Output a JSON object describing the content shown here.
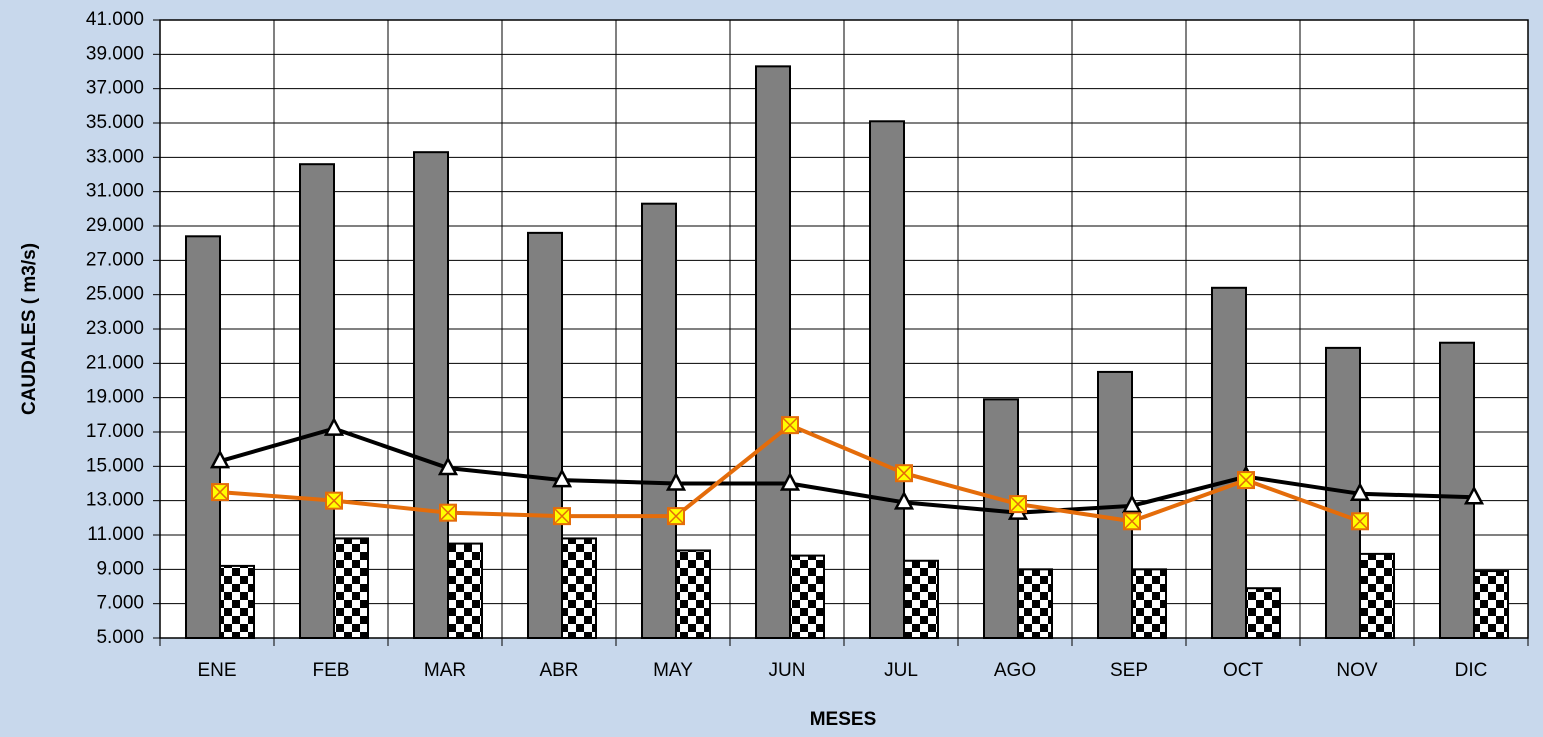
{
  "chart_data": {
    "type": "bar",
    "y_label": "CAUDALES ( m3/s)",
    "x_label": "MESES",
    "categories": [
      "ENE",
      "FEB",
      "MAR",
      "ABR",
      "MAY",
      "JUN",
      "JUL",
      "AGO",
      "SEP",
      "OCT",
      "NOV",
      "DIC"
    ],
    "ylim": [
      5,
      41
    ],
    "yticks": [
      {
        "value": 5,
        "label": "5.000"
      },
      {
        "value": 7,
        "label": "7.000"
      },
      {
        "value": 9,
        "label": "9.000"
      },
      {
        "value": 11,
        "label": "11.000"
      },
      {
        "value": 13,
        "label": "13.000"
      },
      {
        "value": 15,
        "label": "15.000"
      },
      {
        "value": 17,
        "label": "17.000"
      },
      {
        "value": 19,
        "label": "19.000"
      },
      {
        "value": 21,
        "label": "21.000"
      },
      {
        "value": 23,
        "label": "23.000"
      },
      {
        "value": 25,
        "label": "25.000"
      },
      {
        "value": 27,
        "label": "27.000"
      },
      {
        "value": 29,
        "label": "29.000"
      },
      {
        "value": 31,
        "label": "31.000"
      },
      {
        "value": 33,
        "label": "33.000"
      },
      {
        "value": 35,
        "label": "35.000"
      },
      {
        "value": 37,
        "label": "37.000"
      },
      {
        "value": 39,
        "label": "39.000"
      },
      {
        "value": 41,
        "label": "41.000"
      }
    ],
    "grid": true,
    "series": [
      {
        "type": "bar",
        "color": "#808080",
        "fill": "solid",
        "values": [
          28.4,
          32.6,
          33.3,
          28.6,
          30.3,
          38.3,
          35.1,
          18.9,
          20.5,
          25.4,
          21.9,
          22.2
        ]
      },
      {
        "type": "bar",
        "color": "#000000",
        "fill": "checker",
        "values": [
          9.2,
          10.8,
          10.5,
          10.8,
          10.1,
          9.8,
          9.5,
          9.0,
          9.0,
          7.9,
          9.9,
          8.9
        ]
      },
      {
        "type": "line",
        "color": "#000000",
        "marker": "triangle",
        "marker_color": "#ffffff",
        "values": [
          15.3,
          17.2,
          14.9,
          14.2,
          14.0,
          14.0,
          12.9,
          12.3,
          12.7,
          14.4,
          13.4,
          13.2
        ]
      },
      {
        "type": "line",
        "color": "#e46c0a",
        "marker": "xsquare",
        "marker_color": "#ffff00",
        "values": [
          13.5,
          13.0,
          12.3,
          12.1,
          12.1,
          17.4,
          14.6,
          12.8,
          11.8,
          14.2,
          11.8,
          null
        ]
      }
    ]
  }
}
